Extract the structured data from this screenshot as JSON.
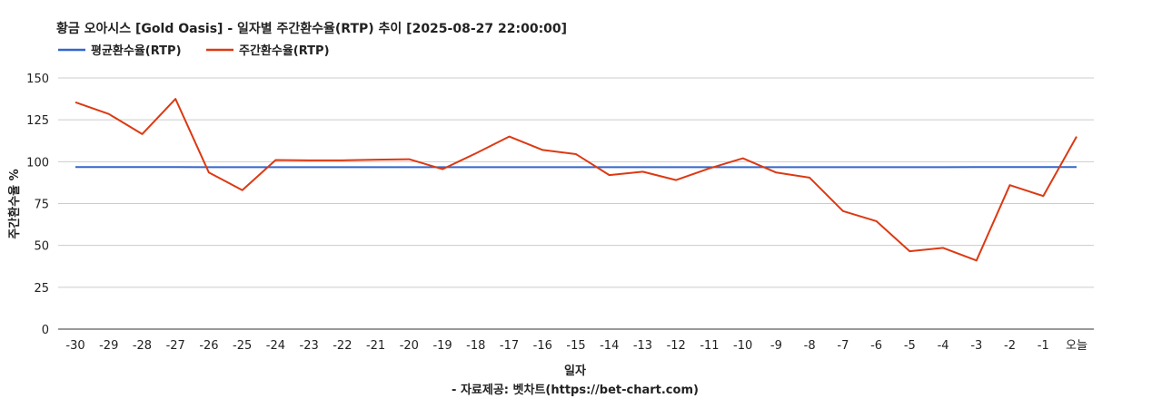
{
  "chart_data": {
    "type": "line",
    "title": "황금 오아시스 [Gold Oasis] - 일자별 주간환수율(RTP) 추이 [2025-08-27 22:00:00]",
    "xlabel": "일자",
    "ylabel": "주간환수율 %",
    "source": "- 자료제공: 벳차트(https://bet-chart.com)",
    "ylim": [
      0,
      150
    ],
    "yticks": [
      "0",
      "25",
      "50",
      "75",
      "100",
      "125",
      "150"
    ],
    "grid": true,
    "legend_position": "top-left",
    "categories": [
      "-30",
      "-29",
      "-28",
      "-27",
      "-26",
      "-25",
      "-24",
      "-23",
      "-22",
      "-21",
      "-20",
      "-19",
      "-18",
      "-17",
      "-16",
      "-15",
      "-14",
      "-13",
      "-12",
      "-11",
      "-10",
      "-9",
      "-8",
      "-7",
      "-6",
      "-5",
      "-4",
      "-3",
      "-2",
      "-1",
      "오늘"
    ],
    "series": [
      {
        "name": "평균환수율(RTP)",
        "color": "#3366cc",
        "values": [
          96.8,
          96.8,
          96.8,
          96.8,
          96.7,
          96.7,
          96.7,
          96.7,
          96.7,
          96.7,
          96.7,
          96.7,
          96.7,
          96.7,
          96.7,
          96.7,
          96.7,
          96.7,
          96.7,
          96.7,
          96.7,
          96.7,
          96.7,
          96.7,
          96.7,
          96.7,
          96.7,
          96.8,
          96.8,
          96.8,
          96.8
        ]
      },
      {
        "name": "주간환수율(RTP)",
        "color": "#dc3912",
        "values": [
          135.5,
          128.5,
          116.5,
          137.5,
          93.5,
          83,
          101,
          100.8,
          100.8,
          101.2,
          101.5,
          95.5,
          105,
          115,
          107,
          104.5,
          92,
          94,
          89,
          96,
          102,
          93.5,
          90.5,
          70.5,
          64.5,
          46.5,
          48.5,
          41,
          86,
          79.5,
          115
        ]
      }
    ]
  }
}
